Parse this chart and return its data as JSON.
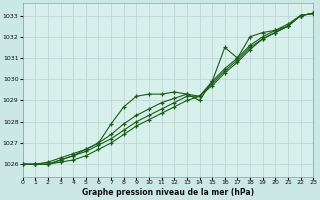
{
  "title": "Graphe pression niveau de la mer (hPa)",
  "bg_color": "#cce8e4",
  "plot_bg_color": "#d8f0ec",
  "grid_color": "#b8d4d0",
  "line_color": "#1a5c1a",
  "xlim": [
    0,
    23
  ],
  "ylim": [
    1025.4,
    1033.6
  ],
  "xticks": [
    0,
    1,
    2,
    3,
    4,
    5,
    6,
    7,
    8,
    9,
    10,
    11,
    12,
    13,
    14,
    15,
    16,
    17,
    18,
    19,
    20,
    21,
    22,
    23
  ],
  "yticks": [
    1026,
    1027,
    1028,
    1029,
    1030,
    1031,
    1032,
    1033
  ],
  "series": [
    [
      1026.0,
      1026.0,
      1026.0,
      1026.1,
      1026.2,
      1026.4,
      1026.7,
      1027.0,
      1027.4,
      1027.8,
      1028.1,
      1028.4,
      1028.7,
      1029.0,
      1029.2,
      1029.7,
      1030.3,
      1030.8,
      1031.4,
      1031.9,
      1032.2,
      1032.5,
      1033.0,
      1033.1
    ],
    [
      1026.0,
      1026.0,
      1026.0,
      1026.2,
      1026.4,
      1026.6,
      1026.9,
      1027.2,
      1027.6,
      1028.0,
      1028.3,
      1028.6,
      1028.9,
      1029.2,
      1029.2,
      1029.8,
      1030.4,
      1030.9,
      1031.5,
      1031.9,
      1032.2,
      1032.5,
      1033.0,
      1033.1
    ],
    [
      1026.0,
      1026.0,
      1026.0,
      1026.2,
      1026.4,
      1026.7,
      1027.0,
      1027.4,
      1027.9,
      1028.3,
      1028.6,
      1028.9,
      1029.1,
      1029.3,
      1029.2,
      1029.9,
      1030.5,
      1031.0,
      1031.6,
      1032.0,
      1032.3,
      1032.6,
      1033.0,
      1033.1
    ],
    [
      1026.0,
      1026.0,
      1026.1,
      1026.3,
      1026.5,
      1026.7,
      1027.0,
      1027.9,
      1028.7,
      1029.2,
      1029.3,
      1029.3,
      1029.4,
      1029.3,
      1029.0,
      1029.9,
      1031.5,
      1031.0,
      1032.0,
      1032.2,
      1032.3,
      1032.5,
      1033.0,
      1033.1
    ]
  ]
}
